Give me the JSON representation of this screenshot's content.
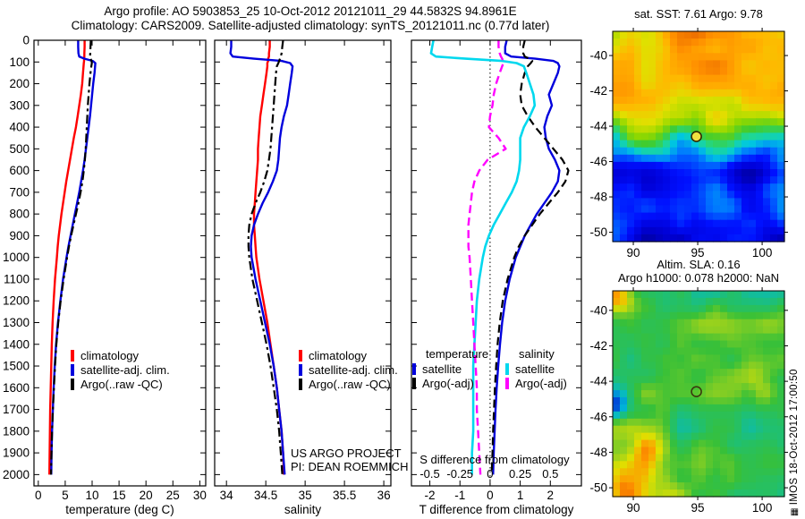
{
  "header": {
    "line1": "Argo profile: AO 5903853_25 10-Oct-2012 20121011_29 44.5832S 94.8961E",
    "line2": "Climatology: CARS2009. Satellite-adjusted climatology: synTS_20121011.nc (0.77d later)"
  },
  "maps_header": {
    "sst_title": "sat. SST: 7.61 Argo: 9.78",
    "sla_title1": "Altim. SLA: 0.16",
    "sla_title2": "Argo h1000: 0.078 h2000: NaN"
  },
  "annotations": {
    "project_line1": "US ARGO PROJECT",
    "project_line2": "PI: DEAN ROEMMICH",
    "imos_logo_glyph": "▦",
    "imos_stamp": "IMOS 18-Oct-2012 17:00:50"
  },
  "chart_data": {
    "depths_m": [
      0,
      30,
      60,
      75,
      85,
      95,
      105,
      120,
      150,
      200,
      250,
      300,
      350,
      400,
      450,
      500,
      550,
      600,
      650,
      700,
      750,
      800,
      850,
      900,
      950,
      1000,
      1100,
      1200,
      1300,
      1400,
      1500,
      1600,
      1700,
      1800,
      1900,
      2000
    ],
    "panels": [
      {
        "id": "temperature",
        "type": "line",
        "xlabel": "temperature (deg C)",
        "xlim": [
          -0.8,
          31.1
        ],
        "xticks": [
          0,
          5,
          10,
          15,
          20,
          25,
          30
        ],
        "ylim": [
          0,
          2052
        ],
        "yticks": [
          0,
          100,
          200,
          300,
          400,
          500,
          600,
          700,
          800,
          900,
          1000,
          1100,
          1200,
          1300,
          1400,
          1500,
          1600,
          1700,
          1800,
          1900,
          2000
        ],
        "show_ytick_labels": true,
        "series": [
          {
            "name": "climatology",
            "color": "#ff0000",
            "dash": "solid",
            "width": 2.4,
            "values": [
              8.6,
              8.6,
              8.55,
              8.55,
              8.5,
              8.5,
              8.45,
              8.4,
              8.3,
              8.15,
              7.9,
              7.6,
              7.3,
              7.0,
              6.6,
              6.25,
              5.9,
              5.55,
              5.2,
              4.9,
              4.6,
              4.3,
              4.05,
              3.8,
              3.6,
              3.45,
              3.1,
              2.85,
              2.65,
              2.5,
              2.4,
              2.3,
              2.2,
              2.15,
              2.1,
              2.05
            ]
          },
          {
            "name": "satellite-adj. clim.",
            "color": "#0000dd",
            "dash": "solid",
            "width": 2.4,
            "values": [
              7.4,
              7.4,
              7.45,
              7.6,
              8.6,
              10.1,
              10.6,
              10.55,
              10.45,
              10.2,
              10.0,
              9.8,
              9.6,
              9.35,
              9.1,
              8.85,
              8.6,
              8.3,
              7.95,
              7.6,
              7.2,
              6.8,
              6.4,
              6.0,
              5.6,
              5.25,
              4.6,
              4.1,
              3.65,
              3.3,
              3.05,
              2.85,
              2.7,
              2.55,
              2.45,
              2.4
            ]
          },
          {
            "name": "Argo(..raw -QC)",
            "color": "#000000",
            "dash": "dashdot",
            "width": 2.2,
            "values": [
              9.75,
              9.7,
              9.65,
              9.6,
              9.7,
              9.9,
              9.95,
              9.85,
              9.7,
              9.5,
              9.35,
              9.2,
              9.1,
              9.0,
              8.9,
              8.8,
              8.65,
              8.45,
              8.2,
              7.85,
              7.45,
              7.0,
              6.55,
              6.1,
              5.7,
              5.35,
              4.7,
              4.15,
              3.7,
              3.35,
              3.1,
              2.9,
              2.7,
              2.55,
              2.45,
              2.35
            ]
          }
        ]
      },
      {
        "id": "salinity",
        "type": "line",
        "xlabel": "salinity",
        "xlim": [
          33.85,
          36.09
        ],
        "xticks": [
          34,
          34.5,
          35,
          35.5,
          36
        ],
        "ylim": [
          0,
          2052
        ],
        "yticks": [
          0,
          100,
          200,
          300,
          400,
          500,
          600,
          700,
          800,
          900,
          1000,
          1100,
          1200,
          1300,
          1400,
          1500,
          1600,
          1700,
          1800,
          1900,
          2000
        ],
        "show_ytick_labels": false,
        "series": [
          {
            "name": "climatology",
            "color": "#ff0000",
            "dash": "solid",
            "width": 2.4,
            "values": [
              34.55,
              34.55,
              34.54,
              34.54,
              34.53,
              34.53,
              34.52,
              34.52,
              34.51,
              34.49,
              34.47,
              34.45,
              34.43,
              34.42,
              34.41,
              34.4,
              34.4,
              34.39,
              34.38,
              34.37,
              34.36,
              34.35,
              34.35,
              34.36,
              34.37,
              34.38,
              34.42,
              34.47,
              34.52,
              34.56,
              34.6,
              34.64,
              34.67,
              34.7,
              34.72,
              34.73
            ]
          },
          {
            "name": "satellite-adj. clim.",
            "color": "#0000dd",
            "dash": "solid",
            "width": 2.4,
            "values": [
              34.06,
              34.06,
              34.05,
              34.08,
              34.35,
              34.7,
              34.81,
              34.84,
              34.83,
              34.81,
              34.79,
              34.77,
              34.73,
              34.7,
              34.68,
              34.67,
              34.66,
              34.64,
              34.59,
              34.53,
              34.46,
              34.4,
              34.35,
              34.32,
              34.31,
              34.32,
              34.37,
              34.43,
              34.49,
              34.55,
              34.6,
              34.64,
              34.67,
              34.7,
              34.72,
              34.74
            ]
          },
          {
            "name": "Argo(..raw -QC)",
            "color": "#000000",
            "dash": "dashdot",
            "width": 2.2,
            "values": [
              34.72,
              34.71,
              34.7,
              34.69,
              34.68,
              34.67,
              34.66,
              34.64,
              34.63,
              34.62,
              34.61,
              34.6,
              34.59,
              34.58,
              34.57,
              34.56,
              34.54,
              34.52,
              34.48,
              34.43,
              34.37,
              34.32,
              34.29,
              34.28,
              34.28,
              34.29,
              34.33,
              34.39,
              34.45,
              34.51,
              34.56,
              34.6,
              34.64,
              34.67,
              34.69,
              34.71
            ]
          }
        ]
      },
      {
        "id": "difference",
        "type": "line",
        "xlabel": "T difference from climatology",
        "xlim": [
          -2.61,
          3.03
        ],
        "xticks": [
          -2,
          -1,
          0,
          1,
          2
        ],
        "ylim": [
          0,
          2052
        ],
        "yticks": [
          0,
          100,
          200,
          300,
          400,
          500,
          600,
          700,
          800,
          900,
          1000,
          1100,
          1200,
          1300,
          1400,
          1500,
          1600,
          1700,
          1800,
          1900,
          2000
        ],
        "show_ytick_labels": false,
        "zero_line": true,
        "legend": {
          "temperature_title": "temperature",
          "salinity_title": "salinity"
        },
        "s_axis": {
          "label": "S difference from climatology",
          "tick_labels": [
            "-0.5",
            "-0.25",
            "0",
            "0.25",
            "0.5"
          ],
          "tick_positions": [
            -2,
            -1,
            0,
            1,
            2
          ],
          "scale_factor": 4
        },
        "series": [
          {
            "name": "satellite",
            "group": "temperature",
            "color": "#0000dd",
            "dash": "solid",
            "width": 2.4,
            "values": [
              0.55,
              0.5,
              0.5,
              0.7,
              1.5,
              2.1,
              2.25,
              2.3,
              2.25,
              2.1,
              1.95,
              2.05,
              1.9,
              1.8,
              1.85,
              1.95,
              2.15,
              2.3,
              2.25,
              2.05,
              1.8,
              1.55,
              1.35,
              1.15,
              1.0,
              0.85,
              0.65,
              0.5,
              0.4,
              0.33,
              0.27,
              0.22,
              0.18,
              0.15,
              0.12,
              0.1
            ]
          },
          {
            "name": "Argo(-adj)",
            "group": "temperature",
            "color": "#000000",
            "dash": "dashed",
            "width": 2.2,
            "values": [
              1.15,
              1.1,
              1.1,
              1.15,
              1.3,
              1.4,
              1.35,
              1.25,
              1.15,
              1.05,
              1.0,
              1.05,
              1.25,
              1.5,
              1.8,
              2.1,
              2.4,
              2.6,
              2.5,
              2.25,
              1.95,
              1.65,
              1.4,
              1.15,
              0.95,
              0.8,
              0.58,
              0.42,
              0.32,
              0.25,
              0.2,
              0.16,
              0.13,
              0.1,
              0.08,
              0.05
            ]
          },
          {
            "name": "satellite",
            "group": "salinity",
            "color": "#00d8ee",
            "dash": "solid",
            "width": 2.6,
            "scale": 4,
            "values": [
              -0.47,
              -0.48,
              -0.49,
              -0.45,
              -0.2,
              0.1,
              0.22,
              0.28,
              0.3,
              0.33,
              0.36,
              0.37,
              0.33,
              0.28,
              0.25,
              0.25,
              0.25,
              0.24,
              0.22,
              0.18,
              0.13,
              0.08,
              0.03,
              -0.01,
              -0.04,
              -0.06,
              -0.09,
              -0.11,
              -0.12,
              -0.13,
              -0.14,
              -0.14,
              -0.14,
              -0.14,
              -0.15,
              -0.15
            ]
          },
          {
            "name": "Argo(-adj)",
            "group": "salinity",
            "color": "#ff00ff",
            "dash": "dashed",
            "width": 2.4,
            "scale": 4,
            "values": [
              0.07,
              0.07,
              0.08,
              0.09,
              0.1,
              0.11,
              0.11,
              0.1,
              0.08,
              0.05,
              0.03,
              0.02,
              0.0,
              -0.01,
              0.07,
              0.13,
              -0.02,
              -0.09,
              -0.13,
              -0.15,
              -0.16,
              -0.17,
              -0.18,
              -0.18,
              -0.18,
              -0.17,
              -0.16,
              -0.15,
              -0.14,
              -0.13,
              -0.12,
              -0.11,
              -0.11,
              -0.1,
              -0.09,
              -0.08
            ]
          }
        ]
      }
    ],
    "maps": [
      {
        "id": "sst-map",
        "type": "heatmap",
        "xticks": [
          90,
          95,
          100
        ],
        "yticks": [
          -40,
          -42,
          -44,
          -46,
          -48,
          -50
        ],
        "lon_range": [
          88.4,
          101.73
        ],
        "lat_range": [
          -50.53,
          -38.63
        ],
        "marker": {
          "lon": 94.8961,
          "lat": -44.5832,
          "fill": "#f0e040",
          "stroke": "#332b00"
        },
        "noise_seed": 7,
        "noise_amp": 0.26,
        "base_gradient": "vertical",
        "base_value": 0.5,
        "hotspots": [],
        "palette": [
          [
            0,
            "#000089"
          ],
          [
            0.1,
            "#0000d8"
          ],
          [
            0.2,
            "#0010ff"
          ],
          [
            0.3,
            "#0078ff"
          ],
          [
            0.38,
            "#00c8e0"
          ],
          [
            0.46,
            "#20d890"
          ],
          [
            0.53,
            "#40cc30"
          ],
          [
            0.62,
            "#90d800"
          ],
          [
            0.72,
            "#e0e000"
          ],
          [
            0.82,
            "#ffb800"
          ],
          [
            0.92,
            "#ff9000"
          ],
          [
            1,
            "#e86800"
          ]
        ]
      },
      {
        "id": "sla-map",
        "type": "heatmap",
        "xticks": [
          90,
          95,
          100
        ],
        "yticks": [
          -40,
          -42,
          -44,
          -46,
          -48,
          -50
        ],
        "lon_range": [
          88.4,
          101.73
        ],
        "lat_range": [
          -50.5,
          -38.9
        ],
        "marker": {
          "lon": 94.8961,
          "lat": -44.5832,
          "fill": "none",
          "stroke": "#3a3a10"
        },
        "noise_seed": 13,
        "noise_amp": 0.3,
        "base_gradient": "none",
        "base_value": 0.5,
        "hotspots": [
          {
            "fx": 0.05,
            "fy": 0.95,
            "amp": 0.45,
            "r": 0.13
          },
          {
            "fx": 0.38,
            "fy": 1.0,
            "amp": 0.3,
            "r": 0.1
          },
          {
            "fx": 0.03,
            "fy": 0.02,
            "amp": 0.35,
            "r": 0.09
          },
          {
            "fx": 0.01,
            "fy": 0.55,
            "amp": -0.4,
            "r": 0.07
          },
          {
            "fx": 0.2,
            "fy": 0.75,
            "amp": 0.25,
            "r": 0.12
          },
          {
            "fx": 0.85,
            "fy": 0.45,
            "amp": 0.2,
            "r": 0.12
          }
        ],
        "palette": [
          [
            0,
            "#0040d8"
          ],
          [
            0.22,
            "#00b8d8"
          ],
          [
            0.38,
            "#20c070"
          ],
          [
            0.5,
            "#38c038"
          ],
          [
            0.62,
            "#90d020"
          ],
          [
            0.74,
            "#e0e000"
          ],
          [
            0.86,
            "#ff9800"
          ],
          [
            1,
            "#e03000"
          ]
        ]
      }
    ]
  }
}
